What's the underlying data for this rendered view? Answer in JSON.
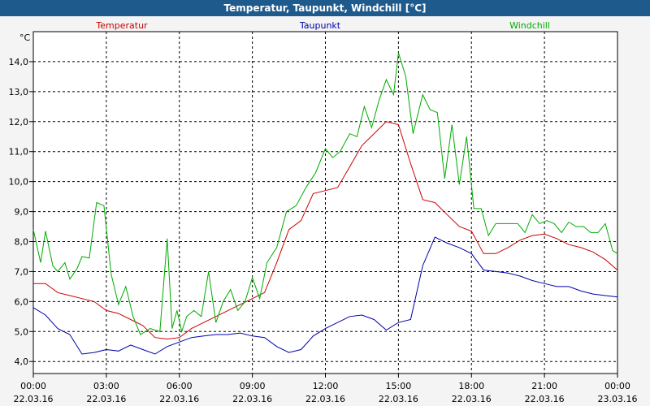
{
  "window": {
    "title": "Temperatur, Taupunkt, Windchill [°C]"
  },
  "colors": {
    "titlebar": "#1f5a8c",
    "temperatur": "#cc0000",
    "taupunkt": "#0000aa",
    "windchill": "#00aa00",
    "grid": "#000000"
  },
  "chart_data": {
    "type": "line",
    "title": "Temperatur, Taupunkt, Windchill [°C]",
    "ylabel": "°C",
    "ylim": [
      3.6,
      15.0
    ],
    "yticks": [
      "4,0",
      "5,0",
      "6,0",
      "7,0",
      "8,0",
      "9,0",
      "10,0",
      "11,0",
      "12,0",
      "13,0",
      "14,0"
    ],
    "ytick_values": [
      4,
      5,
      6,
      7,
      8,
      9,
      10,
      11,
      12,
      13,
      14
    ],
    "xlim": [
      0,
      24
    ],
    "xticks": [
      {
        "time": "00:00",
        "date": "22.03.16"
      },
      {
        "time": "03:00",
        "date": "22.03.16"
      },
      {
        "time": "06:00",
        "date": "22.03.16"
      },
      {
        "time": "09:00",
        "date": "22.03.16"
      },
      {
        "time": "12:00",
        "date": "22.03.16"
      },
      {
        "time": "15:00",
        "date": "22.03.16"
      },
      {
        "time": "18:00",
        "date": "22.03.16"
      },
      {
        "time": "21:00",
        "date": "22.03.16"
      },
      {
        "time": "00:00",
        "date": "23.03.16"
      }
    ],
    "grid": true,
    "legend_position": "top",
    "series": [
      {
        "name": "Temperatur",
        "color": "#cc0000",
        "x": [
          0,
          0.5,
          1,
          1.5,
          2,
          2.5,
          3,
          3.5,
          4,
          4.5,
          5,
          5.5,
          6,
          6.5,
          7,
          7.5,
          8,
          8.5,
          9,
          9.5,
          10,
          10.5,
          11,
          11.5,
          12,
          12.5,
          13,
          13.5,
          14,
          14.5,
          15,
          15.5,
          16,
          16.5,
          17,
          17.5,
          18,
          18.5,
          19,
          19.5,
          20,
          20.5,
          21,
          21.5,
          22,
          22.5,
          23,
          23.5,
          24
        ],
        "values": [
          6.6,
          6.6,
          6.3,
          6.2,
          6.1,
          6.0,
          5.7,
          5.6,
          5.4,
          5.2,
          4.8,
          4.75,
          4.8,
          5.1,
          5.3,
          5.5,
          5.7,
          5.9,
          6.1,
          6.3,
          7.3,
          8.4,
          8.7,
          9.6,
          9.7,
          9.8,
          10.5,
          11.2,
          11.6,
          12.0,
          11.9,
          10.6,
          9.4,
          9.3,
          8.9,
          8.5,
          8.35,
          7.6,
          7.6,
          7.8,
          8.05,
          8.2,
          8.25,
          8.1,
          7.9,
          7.8,
          7.65,
          7.4,
          7.05
        ]
      },
      {
        "name": "Taupunkt",
        "color": "#0000aa",
        "x": [
          0,
          0.5,
          1,
          1.5,
          2,
          2.5,
          3,
          3.5,
          4,
          4.5,
          5,
          5.5,
          6,
          6.5,
          7,
          7.5,
          8,
          8.5,
          9,
          9.5,
          10,
          10.5,
          11,
          11.5,
          12,
          12.5,
          13,
          13.5,
          14,
          14.5,
          15,
          15.5,
          16,
          16.5,
          17,
          17.5,
          18,
          18.5,
          19,
          19.5,
          20,
          20.5,
          21,
          21.5,
          22,
          22.5,
          23,
          23.5,
          24
        ],
        "values": [
          5.8,
          5.55,
          5.1,
          4.9,
          4.25,
          4.3,
          4.4,
          4.35,
          4.55,
          4.4,
          4.25,
          4.5,
          4.65,
          4.8,
          4.85,
          4.9,
          4.9,
          4.95,
          4.85,
          4.8,
          4.5,
          4.3,
          4.4,
          4.85,
          5.1,
          5.3,
          5.5,
          5.55,
          5.4,
          5.05,
          5.3,
          5.4,
          7.2,
          8.15,
          7.95,
          7.8,
          7.6,
          7.05,
          7.0,
          6.95,
          6.85,
          6.7,
          6.6,
          6.5,
          6.5,
          6.35,
          6.25,
          6.2,
          6.15
        ]
      },
      {
        "name": "Windchill",
        "color": "#00aa00",
        "x": [
          0,
          0.3,
          0.5,
          0.8,
          1,
          1.3,
          1.5,
          1.8,
          2,
          2.3,
          2.6,
          2.9,
          3.2,
          3.5,
          3.8,
          4.1,
          4.4,
          4.8,
          5.2,
          5.5,
          5.7,
          5.9,
          6.1,
          6.3,
          6.6,
          6.9,
          7.2,
          7.5,
          7.8,
          8.1,
          8.4,
          8.7,
          9,
          9.3,
          9.6,
          10,
          10.4,
          10.8,
          11.2,
          11.6,
          12,
          12.3,
          12.6,
          13,
          13.3,
          13.6,
          13.9,
          14.2,
          14.5,
          14.8,
          15,
          15.3,
          15.6,
          16,
          16.3,
          16.6,
          16.9,
          17.2,
          17.5,
          17.8,
          18.1,
          18.4,
          18.7,
          19,
          19.3,
          19.6,
          19.9,
          20.2,
          20.5,
          20.8,
          21.1,
          21.4,
          21.7,
          22,
          22.3,
          22.6,
          22.9,
          23.2,
          23.5,
          23.8,
          24
        ],
        "values": [
          8.4,
          7.3,
          8.35,
          7.2,
          7.0,
          7.3,
          6.75,
          7.1,
          7.5,
          7.45,
          9.3,
          9.2,
          6.9,
          5.9,
          6.5,
          5.5,
          4.9,
          5.1,
          5.0,
          8.1,
          5.1,
          5.7,
          5.0,
          5.5,
          5.7,
          5.5,
          7.0,
          5.3,
          6.0,
          6.4,
          5.7,
          6.0,
          6.8,
          6.1,
          7.3,
          7.8,
          9.0,
          9.2,
          9.8,
          10.3,
          11.1,
          10.8,
          11.0,
          11.6,
          11.5,
          12.5,
          11.8,
          12.7,
          13.4,
          12.9,
          14.3,
          13.5,
          11.6,
          12.9,
          12.4,
          12.3,
          10.1,
          11.9,
          9.9,
          11.5,
          9.1,
          9.1,
          8.2,
          8.6,
          8.6,
          8.6,
          8.6,
          8.3,
          8.9,
          8.6,
          8.7,
          8.6,
          8.3,
          8.65,
          8.5,
          8.5,
          8.3,
          8.3,
          8.6,
          7.7,
          7.6
        ]
      }
    ]
  }
}
